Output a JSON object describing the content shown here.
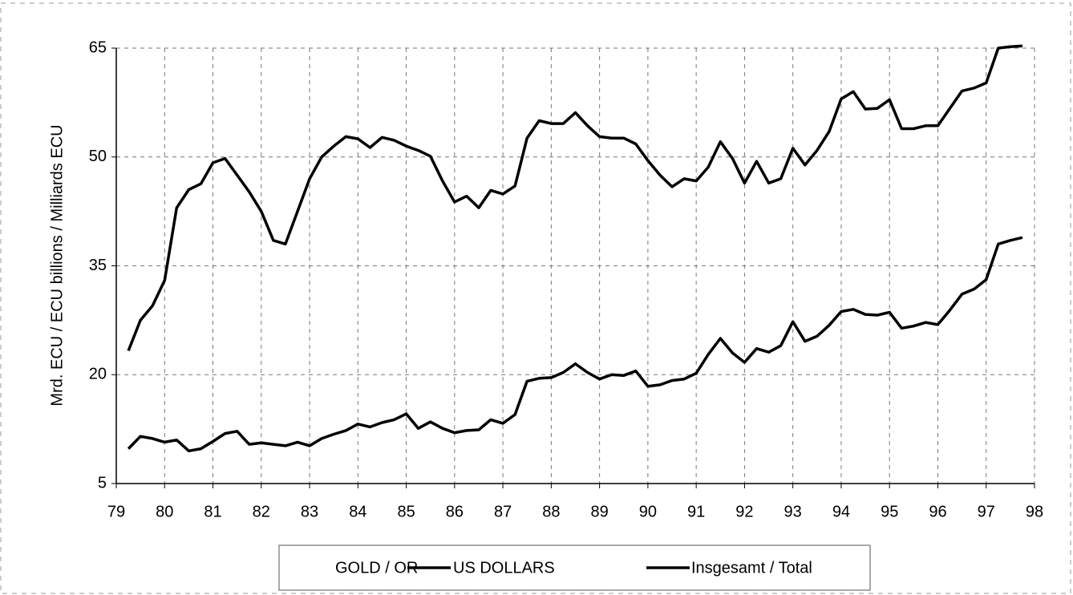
{
  "chart_data": {
    "type": "line",
    "ylabel": "Mrd. ECU / ECU billions / Milliards ECU",
    "x": [
      79.25,
      79.5,
      79.75,
      80,
      80.25,
      80.5,
      80.75,
      81,
      81.25,
      81.5,
      81.75,
      82,
      82.25,
      82.5,
      82.75,
      83,
      83.25,
      83.5,
      83.75,
      84,
      84.25,
      84.5,
      84.75,
      85,
      85.25,
      85.5,
      85.75,
      86,
      86.25,
      86.5,
      86.75,
      87,
      87.25,
      87.5,
      87.75,
      88,
      88.25,
      88.5,
      88.75,
      89,
      89.25,
      89.5,
      89.75,
      90,
      90.25,
      90.5,
      90.75,
      91,
      91.25,
      91.5,
      91.75,
      92,
      92.25,
      92.5,
      92.75,
      93,
      93.25,
      93.5,
      93.75,
      94,
      94.25,
      94.5,
      94.75,
      95,
      95.25,
      95.5,
      95.75,
      96,
      96.25,
      96.5,
      96.75,
      97,
      97.25,
      97.5,
      97.75
    ],
    "series": [
      {
        "name": "GOLD / OR",
        "color": "#ffffff",
        "values": [
          null,
          null,
          null,
          null,
          null,
          null,
          null,
          null,
          null,
          null,
          null,
          null,
          null,
          null,
          null,
          null,
          null,
          null,
          null,
          null,
          null,
          null,
          null,
          null,
          null,
          null,
          null,
          null,
          null,
          null,
          null,
          null,
          null,
          null,
          null,
          null,
          null,
          null,
          null,
          null,
          null,
          null,
          null,
          null,
          null,
          null,
          null,
          null,
          null,
          null,
          null,
          null,
          null,
          null,
          null,
          null,
          null,
          null,
          null,
          null,
          null,
          null,
          null,
          null,
          null,
          null,
          null,
          null,
          null,
          null,
          null,
          null,
          null,
          null,
          null
        ]
      },
      {
        "name": "US DOLLARS",
        "color": "#000000",
        "values": [
          9.8,
          11.5,
          11.2,
          10.7,
          11,
          9.5,
          9.8,
          10.8,
          11.9,
          12.2,
          10.4,
          10.6,
          10.4,
          10.2,
          10.7,
          10.2,
          11.2,
          11.8,
          12.3,
          13.2,
          12.8,
          13.4,
          13.8,
          14.6,
          12.6,
          13.5,
          12.6,
          12,
          12.3,
          12.4,
          13.8,
          13.3,
          14.5,
          19.1,
          19.5,
          19.6,
          20.3,
          21.5,
          20.3,
          19.4,
          20,
          19.9,
          20.5,
          18.4,
          18.6,
          19.2,
          19.4,
          20.2,
          22.8,
          25,
          23,
          21.7,
          23.6,
          23.1,
          24,
          27.3,
          24.6,
          25.3,
          26.8,
          28.7,
          29,
          28.3,
          28.2,
          28.6,
          26.4,
          26.7,
          27.2,
          26.9,
          28.9,
          31.1,
          31.8,
          33.1,
          38,
          38.5,
          38.9
        ]
      },
      {
        "name": "Insgesamt / Total",
        "color": "#000000",
        "values": [
          23.3,
          27.5,
          29.5,
          33,
          43,
          45.5,
          46.3,
          49.2,
          49.8,
          47.5,
          45.2,
          42.5,
          38.5,
          38,
          42.5,
          47,
          50,
          51.5,
          52.8,
          52.5,
          51.3,
          52.7,
          52.3,
          51.5,
          50.9,
          50.1,
          46.7,
          43.8,
          44.6,
          43,
          45.4,
          44.9,
          46,
          52.6,
          55,
          54.6,
          54.6,
          56.1,
          54.3,
          52.8,
          52.6,
          52.6,
          51.8,
          49.5,
          47.5,
          45.9,
          47,
          46.7,
          48.6,
          52.1,
          49.8,
          46.4,
          49.4,
          46.4,
          47,
          51.2,
          48.9,
          50.9,
          53.5,
          58,
          59,
          56.6,
          56.7,
          57.9,
          53.9,
          53.9,
          54.3,
          54.3,
          56.7,
          59.1,
          59.5,
          60.2,
          65,
          65.2,
          65.3
        ]
      }
    ],
    "xlim": [
      79,
      98
    ],
    "xticks": [
      79,
      80,
      81,
      82,
      83,
      84,
      85,
      86,
      87,
      88,
      89,
      90,
      91,
      92,
      93,
      94,
      95,
      96,
      97,
      98
    ],
    "ylim": [
      5,
      65
    ],
    "yticks": [
      5,
      20,
      35,
      50,
      65
    ],
    "grid": true,
    "legend": "bottom"
  }
}
